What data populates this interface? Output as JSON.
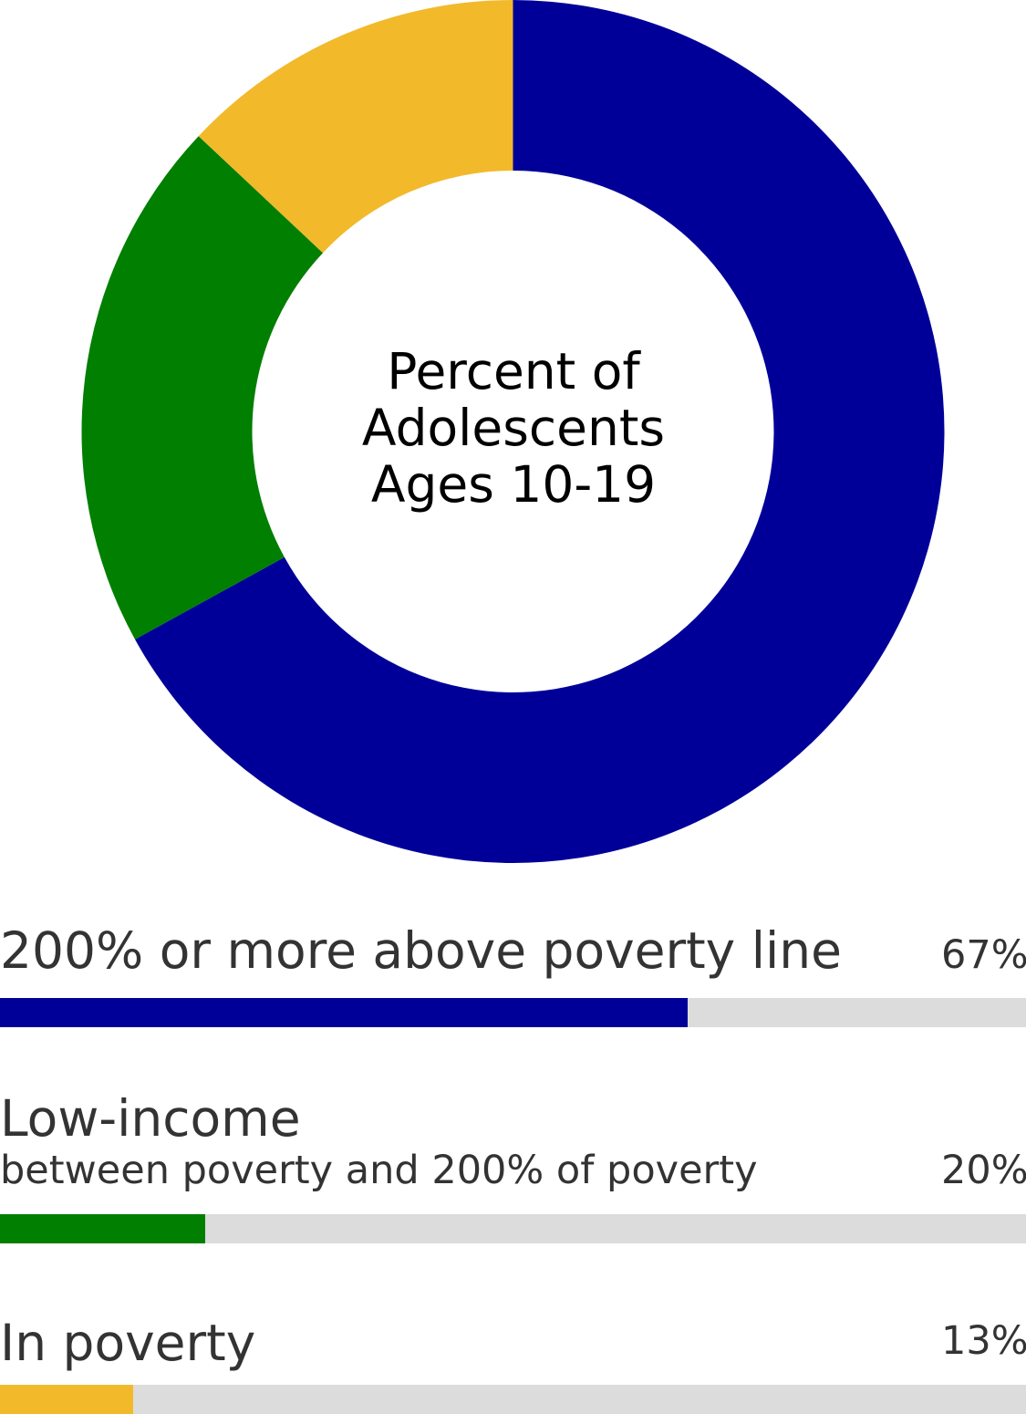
{
  "chart_data": {
    "type": "donut",
    "center_title": [
      "Percent of",
      "Adolescents",
      "Ages 10-19"
    ],
    "categories": [
      "200% or more above poverty line",
      "Low-income",
      "In poverty"
    ],
    "values": [
      67,
      20,
      13
    ],
    "value_labels": [
      "67%",
      "20%",
      "13%"
    ],
    "sublabels": [
      "",
      "between poverty and 200% of poverty",
      ""
    ],
    "colors": [
      "#000099",
      "#007F00",
      "#F2B92B"
    ],
    "track_color": "#DCDCDC"
  }
}
